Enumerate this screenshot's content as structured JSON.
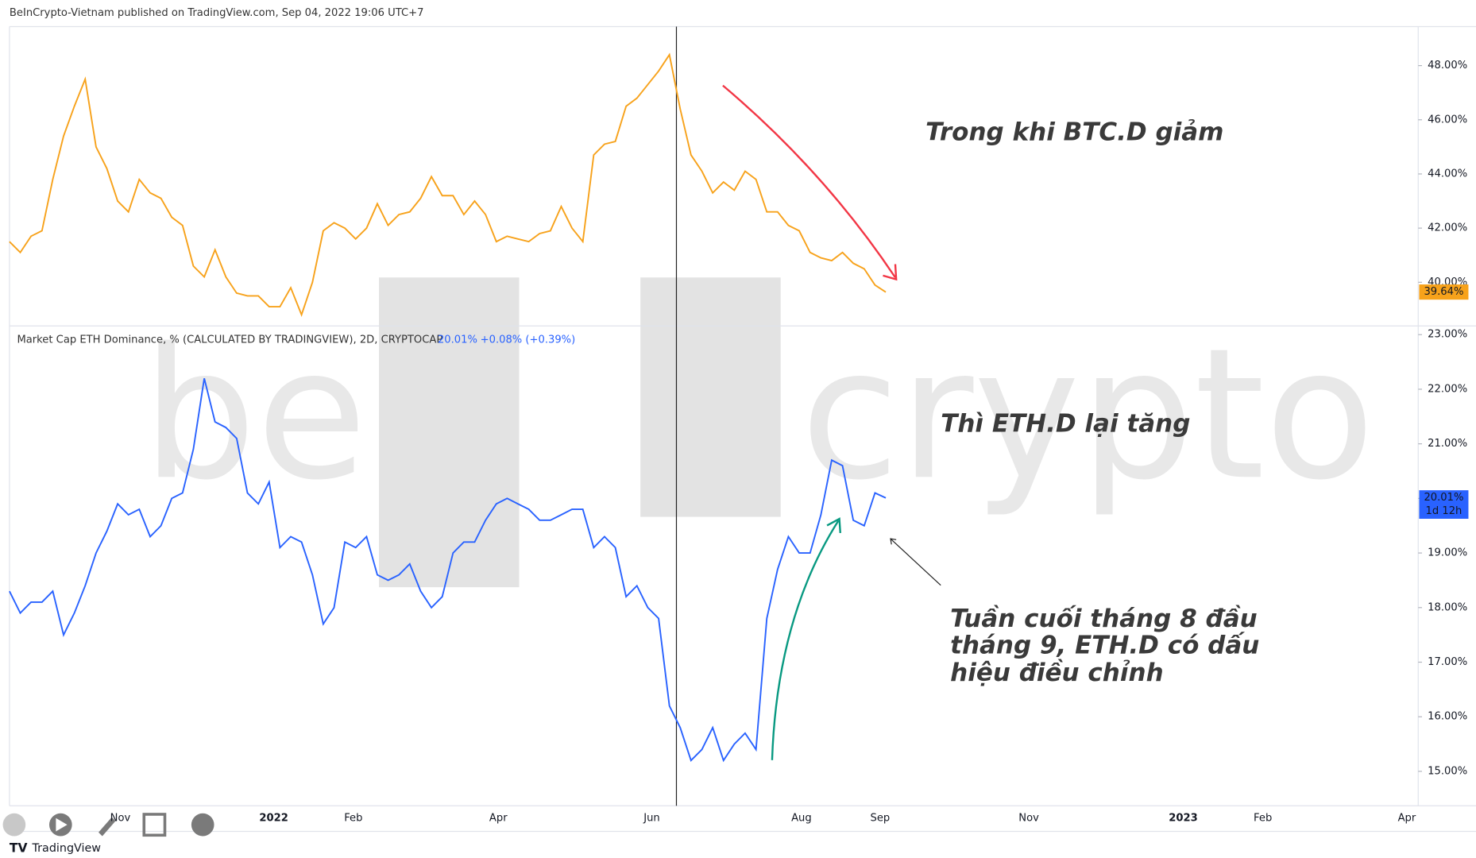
{
  "header": "BeInCrypto-Vietnam published on TradingView.com, Sep 04, 2022 19:06 UTC+7",
  "watermark": [
    "be",
    "crypto"
  ],
  "footer": "TradingView",
  "chart_data": [
    {
      "type": "line",
      "color": "#f7a21b",
      "values": [
        41.5,
        41.1,
        41.7,
        41.9,
        43.8,
        45.4,
        46.5,
        47.5,
        45,
        44.2,
        43,
        42.6,
        43.8,
        43.3,
        43.1,
        42.4,
        42.1,
        40.6,
        40.2,
        41.2,
        40.2,
        39.6,
        39.5,
        39.5,
        39.1,
        39.1,
        39.8,
        38.8,
        40,
        41.9,
        42.2,
        42,
        41.6,
        42,
        42.9,
        42.1,
        42.5,
        42.6,
        43.1,
        43.9,
        43.2,
        43.2,
        42.5,
        43,
        42.5,
        41.5,
        41.7,
        41.6,
        41.5,
        41.8,
        41.9,
        42.8,
        42,
        41.5,
        44.7,
        45.1,
        45.2,
        46.5,
        46.8,
        47.3,
        47.8,
        48.4,
        46.4,
        44.7,
        44.1,
        43.3,
        43.7,
        43.4,
        44.1,
        43.8,
        42.6,
        42.6,
        42.1,
        41.9,
        41.1,
        40.9,
        40.8,
        41.1,
        40.7,
        40.5,
        39.9,
        39.64
      ],
      "last_value_label": "39.64%",
      "ylim": [
        38.39,
        49.44
      ],
      "yticks": [
        {
          "value": 40,
          "label": "40.00%"
        },
        {
          "value": 42,
          "label": "42.00%"
        },
        {
          "value": 44,
          "label": "44.00%"
        },
        {
          "value": 46,
          "label": "46.00%"
        },
        {
          "value": 48,
          "label": "48.00%"
        }
      ],
      "annotation": "Trong khi BTC.D giảm"
    },
    {
      "type": "line",
      "color": "#2962ff",
      "title": "Market Cap ETH Dominance, % (CALCULATED BY TRADINGVIEW), 2D, CRYPTOCAP",
      "last_value": "20.01%",
      "change": "+0.08% (+0.39%)",
      "values": [
        18.3,
        17.9,
        18.1,
        18.1,
        18.3,
        17.5,
        17.9,
        18.4,
        19,
        19.4,
        19.9,
        19.7,
        19.8,
        19.3,
        19.5,
        20,
        20.1,
        20.9,
        22.2,
        21.4,
        21.3,
        21.1,
        20.1,
        19.9,
        20.3,
        19.1,
        19.3,
        19.2,
        18.6,
        17.7,
        18,
        19.2,
        19.1,
        19.3,
        18.6,
        18.5,
        18.6,
        18.8,
        18.3,
        18,
        18.2,
        19,
        19.2,
        19.2,
        19.6,
        19.9,
        20,
        19.9,
        19.8,
        19.6,
        19.6,
        19.7,
        19.8,
        19.8,
        19.1,
        19.3,
        19.1,
        18.2,
        18.4,
        18,
        17.8,
        16.2,
        15.8,
        15.2,
        15.4,
        15.8,
        15.2,
        15.5,
        15.7,
        15.4,
        17.8,
        18.7,
        19.3,
        19,
        19,
        19.7,
        20.7,
        20.6,
        19.6,
        19.5,
        20.1,
        20.01
      ],
      "last_value_label": "20.01%",
      "countdown": "1d 12h",
      "ylim": [
        14.37,
        23.16
      ],
      "yticks": [
        {
          "value": 15,
          "label": "15.00%"
        },
        {
          "value": 16,
          "label": "16.00%"
        },
        {
          "value": 17,
          "label": "17.00%"
        },
        {
          "value": 18,
          "label": "18.00%"
        },
        {
          "value": 19,
          "label": "19.00%"
        },
        {
          "value": 20,
          "label": "20.00%"
        },
        {
          "value": 21,
          "label": "21.00%"
        },
        {
          "value": 22,
          "label": "22.00%"
        },
        {
          "value": 23,
          "label": "23.00%"
        }
      ],
      "annotation": "Thì ETH.D lại tăng",
      "note": [
        "Tuần cuối tháng 8 đầu",
        "tháng 9, ETH.D có dấu",
        "hiệu điều chỉnh"
      ],
      "x_tick_labels": [
        "Nov",
        "2022",
        "Feb",
        "Apr",
        "Jun",
        "Aug",
        "Sep",
        "Nov",
        "2023",
        "Feb",
        "Apr"
      ]
    }
  ]
}
